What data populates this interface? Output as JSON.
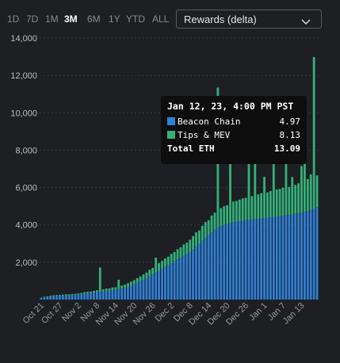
{
  "ranges": [
    "1D",
    "7D",
    "1M",
    "3M",
    "6M",
    "1Y",
    "YTD",
    "ALL"
  ],
  "active_range": "3M",
  "dropdown": {
    "selected": "Rewards (delta)",
    "icon": "chevron-down-icon"
  },
  "colors": {
    "beacon": "#2f7fd4",
    "tips": "#34b07a",
    "background": "#1e1f22",
    "grid": "#3a3a3a"
  },
  "tooltip": {
    "title": "Jan 12, 23, 4:00 PM PST",
    "rows": [
      {
        "label": "Beacon Chain",
        "value": "4.97"
      },
      {
        "label": "Tips & MEV",
        "value": "8.13"
      }
    ],
    "total_label": "Total ETH",
    "total_value": "13.09"
  },
  "chart_data": {
    "type": "bar",
    "stacked": true,
    "grid": true,
    "ylim": [
      0,
      14000
    ],
    "yticks": [
      2000,
      4000,
      6000,
      8000,
      10000,
      12000,
      14000
    ],
    "ytick_labels": [
      "2,000",
      "4,000",
      "6,000",
      "8,000",
      "10,000",
      "12,000",
      "14,000"
    ],
    "xtick_labels": [
      "Oct 21",
      "Oct 27",
      "Nov 2",
      "Nov 8",
      "Nov 14",
      "Nov 20",
      "Nov 26",
      "Dec 2",
      "Dec 8",
      "Dec 14",
      "Dec 20",
      "Dec 26",
      "Jan 1",
      "Jan 7",
      "Jan 13"
    ],
    "bars_per_label": 6,
    "series": [
      {
        "name": "Beacon Chain",
        "values": [
          80,
          120,
          150,
          170,
          190,
          200,
          210,
          215,
          225,
          230,
          240,
          250,
          270,
          290,
          320,
          340,
          360,
          380,
          400,
          420,
          450,
          470,
          490,
          510,
          540,
          560,
          600,
          640,
          700,
          760,
          820,
          900,
          980,
          1050,
          1150,
          1250,
          1350,
          1450,
          1550,
          1650,
          1750,
          1850,
          1950,
          2050,
          2150,
          2250,
          2350,
          2450,
          2550,
          2700,
          2850,
          3000,
          3150,
          3300,
          3450,
          3600,
          3750,
          3850,
          3950,
          4000,
          4050,
          4100,
          4150,
          4180,
          4200,
          4220,
          4250,
          4270,
          4290,
          4310,
          4330,
          4350,
          4370,
          4390,
          4410,
          4430,
          4450,
          4470,
          4490,
          4510,
          4530,
          4560,
          4590,
          4620,
          4650,
          4700,
          4750,
          4800,
          4850,
          4950
        ]
      },
      {
        "name": "Tips & MEV",
        "values": [
          20,
          30,
          30,
          40,
          40,
          50,
          40,
          50,
          60,
          50,
          60,
          60,
          60,
          70,
          80,
          80,
          70,
          90,
          100,
          1300,
          100,
          120,
          110,
          140,
          120,
          500,
          150,
          160,
          180,
          200,
          220,
          250,
          260,
          300,
          300,
          350,
          350,
          800,
          400,
          420,
          450,
          450,
          500,
          500,
          550,
          550,
          600,
          600,
          650,
          700,
          750,
          700,
          800,
          850,
          800,
          900,
          900,
          7500,
          950,
          1000,
          1000,
          4500,
          1100,
          1100,
          1150,
          1200,
          1200,
          5000,
          1250,
          3200,
          1300,
          1350,
          2200,
          1350,
          1400,
          4000,
          1450,
          1450,
          1500,
          3000,
          1500,
          2000,
          1550,
          1600,
          2500,
          2600,
          1700,
          1900,
          8130,
          1700
        ]
      }
    ]
  }
}
